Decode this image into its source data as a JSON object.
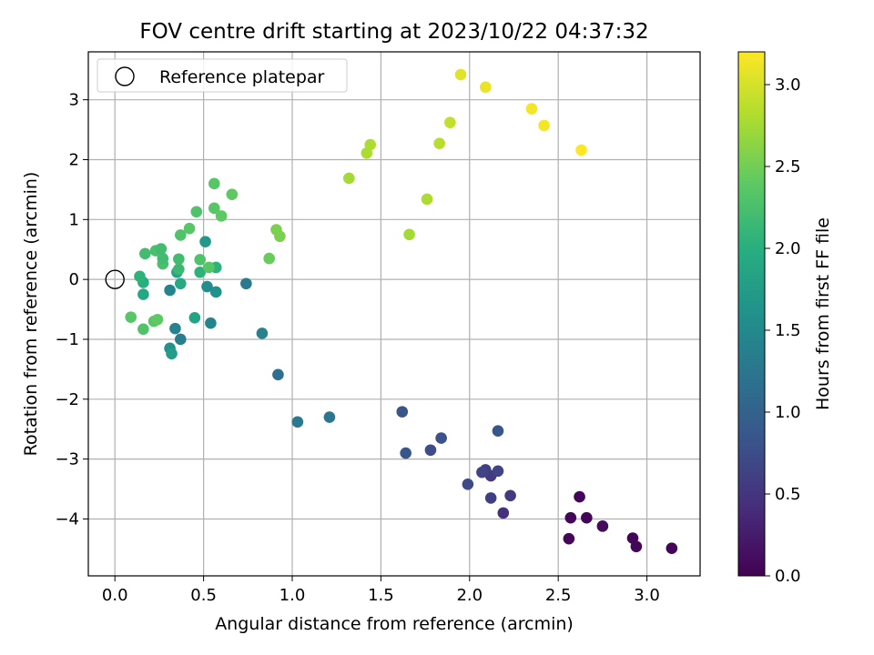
{
  "chart_data": {
    "type": "scatter",
    "title": "FOV centre drift starting at 2023/10/22 04:37:32",
    "xlabel": "Angular distance from reference (arcmin)",
    "ylabel": "Rotation from reference (arcmin)",
    "xlim": [
      -0.15,
      3.3
    ],
    "ylim": [
      -4.95,
      3.8
    ],
    "xticks": [
      0.0,
      0.5,
      1.0,
      1.5,
      2.0,
      2.5,
      3.0
    ],
    "xtick_labels": [
      "0.0",
      "0.5",
      "1.0",
      "1.5",
      "2.0",
      "2.5",
      "3.0"
    ],
    "yticks": [
      -4,
      -3,
      -2,
      -1,
      0,
      1,
      2,
      3
    ],
    "ytick_labels": [
      "−4",
      "−3",
      "−2",
      "−1",
      "0",
      "1",
      "2",
      "3"
    ],
    "grid": true,
    "legend": {
      "position": "top-left",
      "entries": [
        {
          "label": "Reference platepar",
          "marker": "open-circle"
        }
      ]
    },
    "reference_point": {
      "x": 0.0,
      "y": 0.0
    },
    "colorbar": {
      "label": "Hours from first FF file",
      "colormap": "viridis",
      "range": [
        0.0,
        3.2
      ],
      "ticks": [
        0.0,
        0.5,
        1.0,
        1.5,
        2.0,
        2.5,
        3.0
      ],
      "tick_labels": [
        "0.0",
        "0.5",
        "1.0",
        "1.5",
        "2.0",
        "2.5",
        "3.0"
      ]
    },
    "series": [
      {
        "points": [
          {
            "x": 2.62,
            "y": -3.63,
            "c": 0.05
          },
          {
            "x": 2.57,
            "y": -3.98,
            "c": 0.05
          },
          {
            "x": 2.66,
            "y": -3.98,
            "c": 0.05
          },
          {
            "x": 2.56,
            "y": -4.33,
            "c": 0.05
          },
          {
            "x": 2.75,
            "y": -4.12,
            "c": 0.1
          },
          {
            "x": 2.92,
            "y": -4.32,
            "c": 0.05
          },
          {
            "x": 2.94,
            "y": -4.46,
            "c": 0.05
          },
          {
            "x": 3.14,
            "y": -4.49,
            "c": 0.05
          },
          {
            "x": 2.23,
            "y": -3.61,
            "c": 0.55
          },
          {
            "x": 2.19,
            "y": -3.9,
            "c": 0.45
          },
          {
            "x": 2.12,
            "y": -3.65,
            "c": 0.6
          },
          {
            "x": 2.12,
            "y": -3.28,
            "c": 0.55
          },
          {
            "x": 2.09,
            "y": -3.18,
            "c": 0.6
          },
          {
            "x": 2.07,
            "y": -3.22,
            "c": 0.65
          },
          {
            "x": 2.16,
            "y": -3.2,
            "c": 0.65
          },
          {
            "x": 1.99,
            "y": -3.42,
            "c": 0.7
          },
          {
            "x": 2.16,
            "y": -2.53,
            "c": 0.85
          },
          {
            "x": 1.84,
            "y": -2.65,
            "c": 0.8
          },
          {
            "x": 1.78,
            "y": -2.85,
            "c": 0.75
          },
          {
            "x": 1.64,
            "y": -2.9,
            "c": 0.85
          },
          {
            "x": 1.62,
            "y": -2.21,
            "c": 0.85
          },
          {
            "x": 1.21,
            "y": -2.3,
            "c": 1.25
          },
          {
            "x": 1.03,
            "y": -2.38,
            "c": 1.3
          },
          {
            "x": 0.92,
            "y": -1.59,
            "c": 1.15
          },
          {
            "x": 0.83,
            "y": -0.9,
            "c": 1.4
          },
          {
            "x": 0.74,
            "y": -0.07,
            "c": 1.3
          },
          {
            "x": 0.37,
            "y": -1.0,
            "c": 1.35
          },
          {
            "x": 0.34,
            "y": -0.82,
            "c": 1.4
          },
          {
            "x": 0.31,
            "y": -1.15,
            "c": 1.6
          },
          {
            "x": 0.32,
            "y": -1.24,
            "c": 1.75
          },
          {
            "x": 0.31,
            "y": -0.18,
            "c": 1.45
          },
          {
            "x": 0.54,
            "y": -0.73,
            "c": 1.45
          },
          {
            "x": 0.52,
            "y": -0.12,
            "c": 1.55
          },
          {
            "x": 0.57,
            "y": -0.21,
            "c": 1.6
          },
          {
            "x": 0.51,
            "y": 0.63,
            "c": 1.7
          },
          {
            "x": 0.45,
            "y": -0.64,
            "c": 1.85
          },
          {
            "x": 0.35,
            "y": 0.12,
            "c": 1.85
          },
          {
            "x": 0.16,
            "y": -0.25,
            "c": 1.9
          },
          {
            "x": 0.16,
            "y": -0.05,
            "c": 2.0
          },
          {
            "x": 0.14,
            "y": 0.05,
            "c": 2.05
          },
          {
            "x": 0.37,
            "y": -0.07,
            "c": 1.95
          },
          {
            "x": 0.48,
            "y": 0.12,
            "c": 2.05
          },
          {
            "x": 0.57,
            "y": 0.2,
            "c": 2.05
          },
          {
            "x": 0.36,
            "y": 0.17,
            "c": 2.15
          },
          {
            "x": 0.36,
            "y": 0.34,
            "c": 2.2
          },
          {
            "x": 0.27,
            "y": 0.26,
            "c": 2.25
          },
          {
            "x": 0.27,
            "y": 0.35,
            "c": 2.2
          },
          {
            "x": 0.23,
            "y": 0.48,
            "c": 2.25
          },
          {
            "x": 0.26,
            "y": 0.51,
            "c": 2.2
          },
          {
            "x": 0.17,
            "y": 0.43,
            "c": 2.2
          },
          {
            "x": 0.48,
            "y": 0.33,
            "c": 2.3
          },
          {
            "x": 0.53,
            "y": 0.2,
            "c": 2.35
          },
          {
            "x": 0.37,
            "y": 0.74,
            "c": 2.3
          },
          {
            "x": 0.42,
            "y": 0.85,
            "c": 2.35
          },
          {
            "x": 0.46,
            "y": 1.13,
            "c": 2.3
          },
          {
            "x": 0.56,
            "y": 1.19,
            "c": 2.35
          },
          {
            "x": 0.6,
            "y": 1.06,
            "c": 2.4
          },
          {
            "x": 0.56,
            "y": 1.6,
            "c": 2.35
          },
          {
            "x": 0.66,
            "y": 1.42,
            "c": 2.4
          },
          {
            "x": 0.87,
            "y": 0.35,
            "c": 2.45
          },
          {
            "x": 0.91,
            "y": 0.83,
            "c": 2.55
          },
          {
            "x": 0.93,
            "y": 0.72,
            "c": 2.55
          },
          {
            "x": 0.16,
            "y": -0.83,
            "c": 2.3
          },
          {
            "x": 0.09,
            "y": -0.63,
            "c": 2.35
          },
          {
            "x": 0.22,
            "y": -0.7,
            "c": 2.35
          },
          {
            "x": 0.24,
            "y": -0.67,
            "c": 2.4
          },
          {
            "x": 1.32,
            "y": 1.69,
            "c": 2.75
          },
          {
            "x": 1.42,
            "y": 2.11,
            "c": 2.8
          },
          {
            "x": 1.44,
            "y": 2.25,
            "c": 2.8
          },
          {
            "x": 1.66,
            "y": 0.75,
            "c": 2.75
          },
          {
            "x": 1.76,
            "y": 1.34,
            "c": 2.8
          },
          {
            "x": 1.83,
            "y": 2.27,
            "c": 2.85
          },
          {
            "x": 1.89,
            "y": 2.62,
            "c": 2.9
          },
          {
            "x": 1.95,
            "y": 3.42,
            "c": 3.05
          },
          {
            "x": 2.09,
            "y": 3.21,
            "c": 3.1
          },
          {
            "x": 2.35,
            "y": 2.85,
            "c": 3.15
          },
          {
            "x": 2.42,
            "y": 2.57,
            "c": 3.15
          },
          {
            "x": 2.63,
            "y": 2.16,
            "c": 3.2
          }
        ]
      }
    ]
  }
}
